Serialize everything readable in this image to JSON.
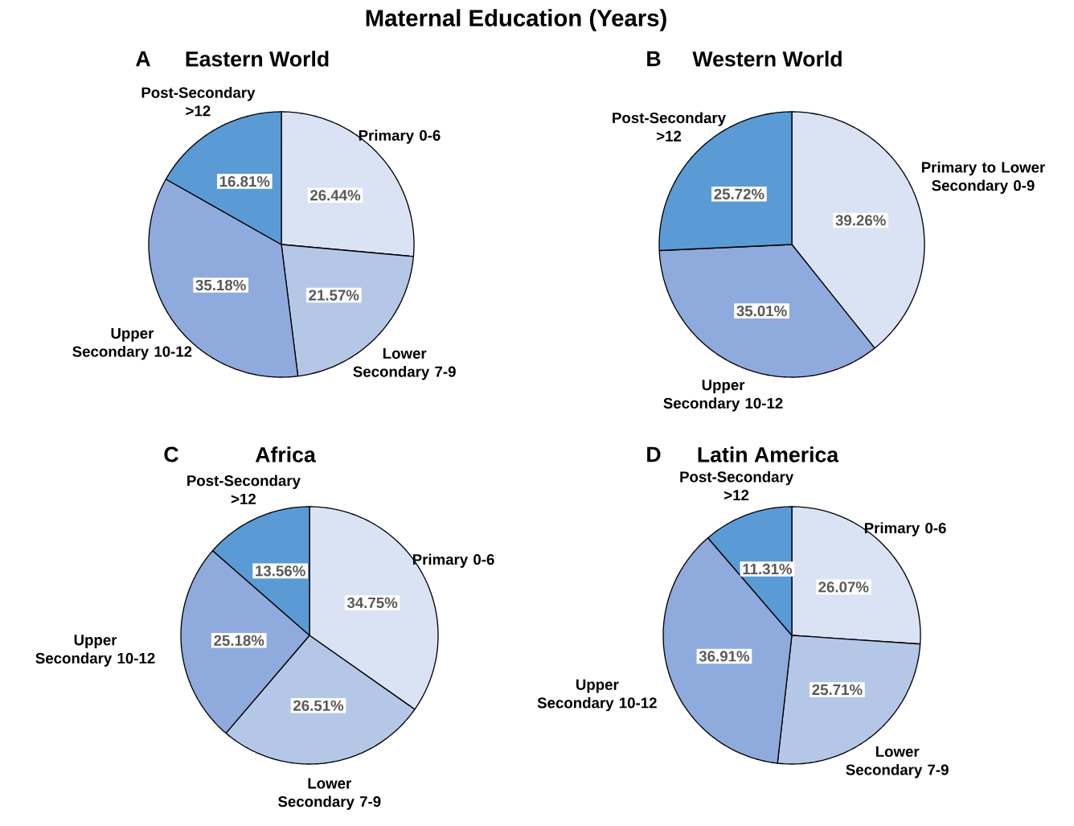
{
  "chart_data": [
    {
      "type": "pie",
      "title": "Eastern World",
      "annotations": [
        "Maternal Education (Years)",
        "A"
      ],
      "categories": [
        "Primary 0-6",
        "Lower Secondary 7-9",
        "Upper Secondary 10-12",
        "Post-Secondary >12"
      ],
      "values": [
        26.44,
        21.57,
        35.18,
        16.81
      ],
      "value_labels": [
        "26.44%",
        "21.57%",
        "35.18%",
        "16.81%"
      ],
      "colors": [
        "#dae3f3",
        "#b4c7e7",
        "#8faadc",
        "#5b9bd5"
      ]
    },
    {
      "type": "pie",
      "title": "Western World",
      "annotations": [
        "B"
      ],
      "categories": [
        "Primary to Lower Secondary 0-9",
        "Upper Secondary 10-12",
        "Post-Secondary >12"
      ],
      "values": [
        39.26,
        35.01,
        25.72
      ],
      "value_labels": [
        "39.26%",
        "35.01%",
        "25.72%"
      ],
      "colors": [
        "#dae3f3",
        "#8faadc",
        "#5b9bd5"
      ]
    },
    {
      "type": "pie",
      "title": "Africa",
      "annotations": [
        "C"
      ],
      "categories": [
        "Primary 0-6",
        "Lower Secondary 7-9",
        "Upper Secondary 10-12",
        "Post-Secondary >12"
      ],
      "values": [
        34.75,
        26.51,
        25.18,
        13.56
      ],
      "value_labels": [
        "34.75%",
        "26.51%",
        "25.18%",
        "13.56%"
      ],
      "colors": [
        "#dae3f3",
        "#b4c7e7",
        "#8faadc",
        "#5b9bd5"
      ]
    },
    {
      "type": "pie",
      "title": "Latin America",
      "annotations": [
        "D"
      ],
      "categories": [
        "Primary 0-6",
        "Lower Secondary 7-9",
        "Upper Secondary 10-12",
        "Post-Secondary >12"
      ],
      "values": [
        26.07,
        25.71,
        36.91,
        11.31
      ],
      "value_labels": [
        "26.07%",
        "25.71%",
        "36.91%",
        "11.31%"
      ],
      "colors": [
        "#dae3f3",
        "#b4c7e7",
        "#8faadc",
        "#5b9bd5"
      ]
    }
  ]
}
